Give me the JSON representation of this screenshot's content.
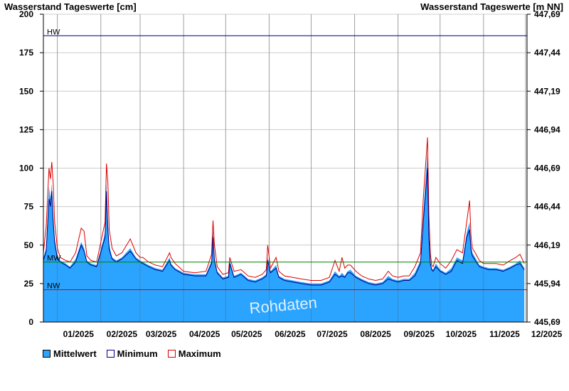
{
  "title_left": "Wasserstand Tageswerte [cm]",
  "title_right": "Wasserstand Tageswerte [m NN]",
  "watermark": "Rohdaten",
  "colors": {
    "mean_fill": "#2ba4ff",
    "min_line": "#000080",
    "max_line": "#dd0000",
    "hw": "#000080",
    "mw": "#008000",
    "nw": "#dd0000",
    "grid": "#cccccc"
  },
  "chart_data": {
    "type": "area",
    "xlabel": "",
    "ylabel": "Wasserstand Tageswerte [cm]",
    "ylabel_right": "Wasserstand Tageswerte [m NN]",
    "ylim": [
      0,
      200
    ],
    "yticks": [
      0,
      25,
      50,
      75,
      100,
      125,
      150,
      175,
      200
    ],
    "yticks_right": [
      "445,69",
      "445,94",
      "446,19",
      "446,44",
      "446,69",
      "446,94",
      "447,19",
      "447,44",
      "447,69"
    ],
    "xlim": [
      "2024-12-22",
      "2025-12-02"
    ],
    "xticks": [
      {
        "date": "2025-01-01",
        "label": "01/2025"
      },
      {
        "date": "2025-02-01",
        "label": "02/2025"
      },
      {
        "date": "2025-03-01",
        "label": "03/2025"
      },
      {
        "date": "2025-04-01",
        "label": "04/2025"
      },
      {
        "date": "2025-05-01",
        "label": "05/2025"
      },
      {
        "date": "2025-06-01",
        "label": "06/2025"
      },
      {
        "date": "2025-07-01",
        "label": "07/2025"
      },
      {
        "date": "2025-08-01",
        "label": "08/2025"
      },
      {
        "date": "2025-09-01",
        "label": "09/2025"
      },
      {
        "date": "2025-10-01",
        "label": "10/2025"
      },
      {
        "date": "2025-11-01",
        "label": "11/2025"
      },
      {
        "date": "2025-12-01",
        "label": "12/2025"
      }
    ],
    "reference_lines": [
      {
        "label": "HW",
        "value": 186
      },
      {
        "label": "MW",
        "value": 39
      },
      {
        "label": "NW",
        "value": 21
      }
    ],
    "x": [
      "2024-12-22",
      "2024-12-24",
      "2024-12-26",
      "2024-12-27",
      "2024-12-28",
      "2024-12-29",
      "2024-12-30",
      "2025-01-01",
      "2025-01-03",
      "2025-01-07",
      "2025-01-10",
      "2025-01-14",
      "2025-01-18",
      "2025-01-20",
      "2025-01-22",
      "2025-01-25",
      "2025-01-29",
      "2025-02-04",
      "2025-02-05",
      "2025-02-06",
      "2025-02-07",
      "2025-02-09",
      "2025-02-12",
      "2025-02-16",
      "2025-02-22",
      "2025-02-26",
      "2025-03-01",
      "2025-03-03",
      "2025-03-07",
      "2025-03-12",
      "2025-03-17",
      "2025-03-22",
      "2025-03-23",
      "2025-03-26",
      "2025-04-01",
      "2025-04-09",
      "2025-04-17",
      "2025-04-21",
      "2025-04-22",
      "2025-04-23",
      "2025-04-25",
      "2025-04-29",
      "2025-05-03",
      "2025-05-04",
      "2025-05-07",
      "2025-05-12",
      "2025-05-17",
      "2025-05-22",
      "2025-05-27",
      "2025-05-30",
      "2025-05-31",
      "2025-06-02",
      "2025-06-06",
      "2025-06-08",
      "2025-06-12",
      "2025-06-18",
      "2025-06-24",
      "2025-07-01",
      "2025-07-08",
      "2025-07-14",
      "2025-07-18",
      "2025-07-21",
      "2025-07-23",
      "2025-07-25",
      "2025-07-27",
      "2025-07-29",
      "2025-08-02",
      "2025-08-06",
      "2025-08-11",
      "2025-08-16",
      "2025-08-21",
      "2025-08-25",
      "2025-08-28",
      "2025-09-01",
      "2025-09-05",
      "2025-09-09",
      "2025-09-13",
      "2025-09-17",
      "2025-09-19",
      "2025-09-22",
      "2025-09-23",
      "2025-09-24",
      "2025-09-25",
      "2025-09-26",
      "2025-09-28",
      "2025-10-01",
      "2025-10-05",
      "2025-10-09",
      "2025-10-13",
      "2025-10-17",
      "2025-10-20",
      "2025-10-22",
      "2025-10-23",
      "2025-10-24",
      "2025-10-26",
      "2025-10-29",
      "2025-11-01",
      "2025-11-05",
      "2025-11-10",
      "2025-11-15",
      "2025-11-20",
      "2025-11-24",
      "2025-11-27",
      "2025-11-30"
    ],
    "series": [
      {
        "name": "Mittelwert",
        "values": [
          42,
          48,
          88,
          80,
          90,
          70,
          55,
          43,
          40,
          38,
          36,
          41,
          52,
          48,
          40,
          38,
          37,
          58,
          90,
          65,
          50,
          42,
          40,
          42,
          48,
          42,
          40,
          39,
          37,
          35,
          34,
          42,
          38,
          35,
          32,
          31,
          31,
          40,
          60,
          42,
          33,
          29,
          30,
          40,
          30,
          32,
          28,
          27,
          29,
          31,
          42,
          33,
          37,
          30,
          28,
          27,
          26,
          25,
          25,
          27,
          33,
          30,
          32,
          30,
          33,
          34,
          30,
          28,
          26,
          25,
          26,
          30,
          28,
          27,
          28,
          28,
          32,
          40,
          70,
          110,
          60,
          40,
          35,
          34,
          38,
          34,
          32,
          35,
          42,
          40,
          58,
          65,
          50,
          45,
          42,
          37,
          36,
          35,
          35,
          34,
          36,
          38,
          40,
          35
        ]
      },
      {
        "name": "Minimum",
        "values": [
          40,
          46,
          80,
          75,
          85,
          65,
          52,
          41,
          39,
          37,
          35,
          39,
          50,
          46,
          39,
          37,
          36,
          55,
          85,
          60,
          47,
          41,
          39,
          41,
          46,
          41,
          39,
          38,
          36,
          34,
          33,
          40,
          37,
          34,
          31,
          30,
          30,
          38,
          55,
          40,
          32,
          28,
          29,
          38,
          29,
          31,
          27,
          26,
          28,
          30,
          40,
          32,
          35,
          29,
          27,
          26,
          25,
          24,
          24,
          26,
          31,
          29,
          30,
          29,
          32,
          32,
          29,
          27,
          25,
          24,
          25,
          28,
          27,
          26,
          27,
          27,
          30,
          38,
          65,
          100,
          55,
          38,
          34,
          33,
          36,
          33,
          31,
          33,
          40,
          38,
          55,
          60,
          47,
          43,
          40,
          36,
          35,
          34,
          34,
          33,
          35,
          37,
          38,
          34
        ]
      },
      {
        "name": "Maximum",
        "values": [
          45,
          62,
          100,
          93,
          104,
          90,
          65,
          48,
          42,
          40,
          39,
          45,
          61,
          59,
          43,
          40,
          39,
          65,
          103,
          90,
          60,
          48,
          43,
          45,
          54,
          45,
          42,
          42,
          39,
          37,
          36,
          45,
          42,
          38,
          33,
          32,
          33,
          44,
          66,
          50,
          36,
          31,
          32,
          42,
          33,
          34,
          30,
          29,
          31,
          34,
          50,
          35,
          42,
          33,
          30,
          29,
          28,
          27,
          27,
          29,
          40,
          33,
          42,
          35,
          37,
          37,
          33,
          30,
          28,
          27,
          28,
          33,
          30,
          29,
          30,
          30,
          36,
          45,
          80,
          120,
          70,
          45,
          37,
          36,
          42,
          38,
          35,
          40,
          47,
          45,
          65,
          79,
          56,
          48,
          45,
          40,
          38,
          38,
          38,
          37,
          40,
          42,
          44,
          38
        ]
      }
    ]
  }
}
